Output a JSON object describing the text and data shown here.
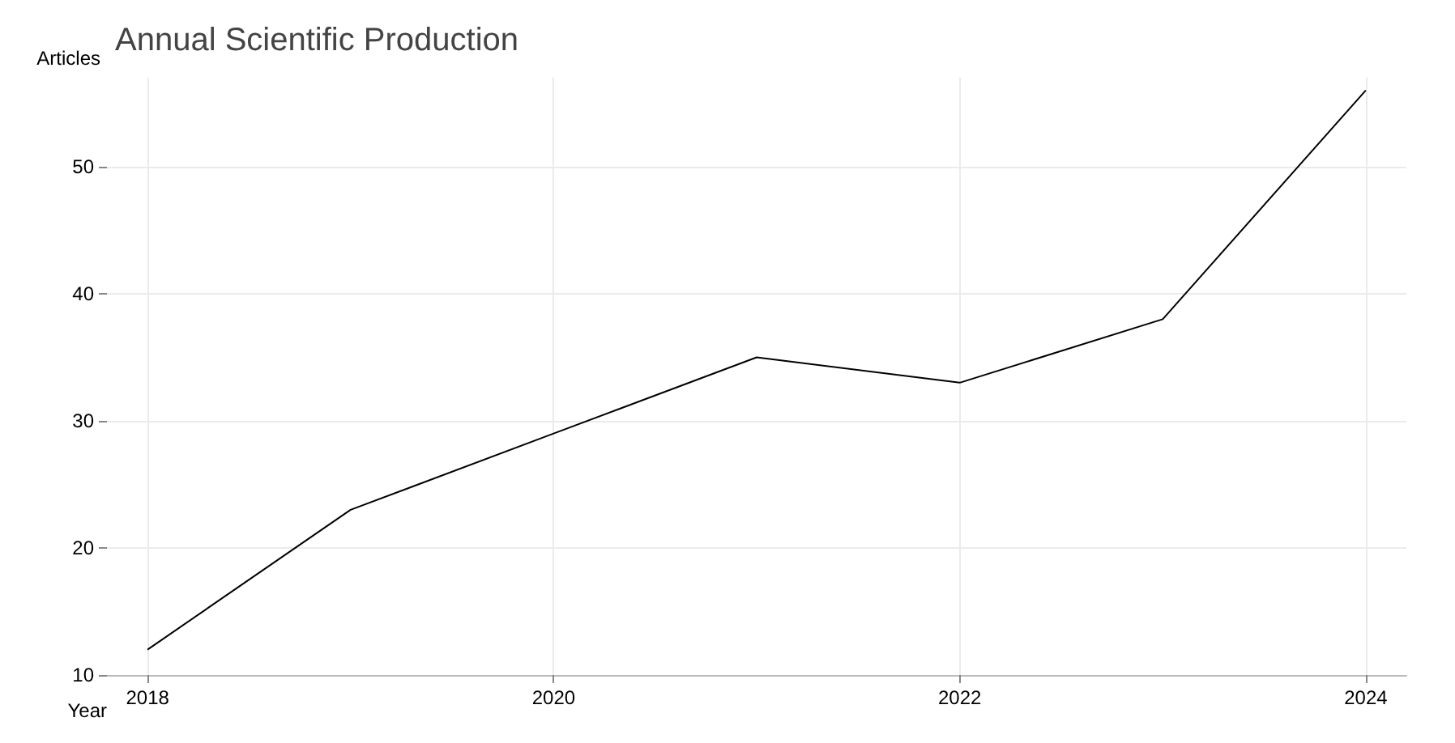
{
  "chart_data": {
    "type": "line",
    "title": "Annual Scientific Production",
    "xlabel": "Year",
    "ylabel": "Articles",
    "x": [
      2018,
      2019,
      2020,
      2021,
      2022,
      2023,
      2024
    ],
    "values": [
      12,
      23,
      29,
      35,
      33,
      38,
      56
    ],
    "color": "#000000",
    "xlim": [
      2017.8,
      2024.2
    ],
    "ylim": [
      10,
      57
    ],
    "xticks": [
      2018,
      2020,
      2022,
      2024
    ],
    "yticks": [
      10,
      20,
      30,
      40,
      50
    ],
    "grid": true,
    "marker": "none",
    "line_style": "solid"
  }
}
